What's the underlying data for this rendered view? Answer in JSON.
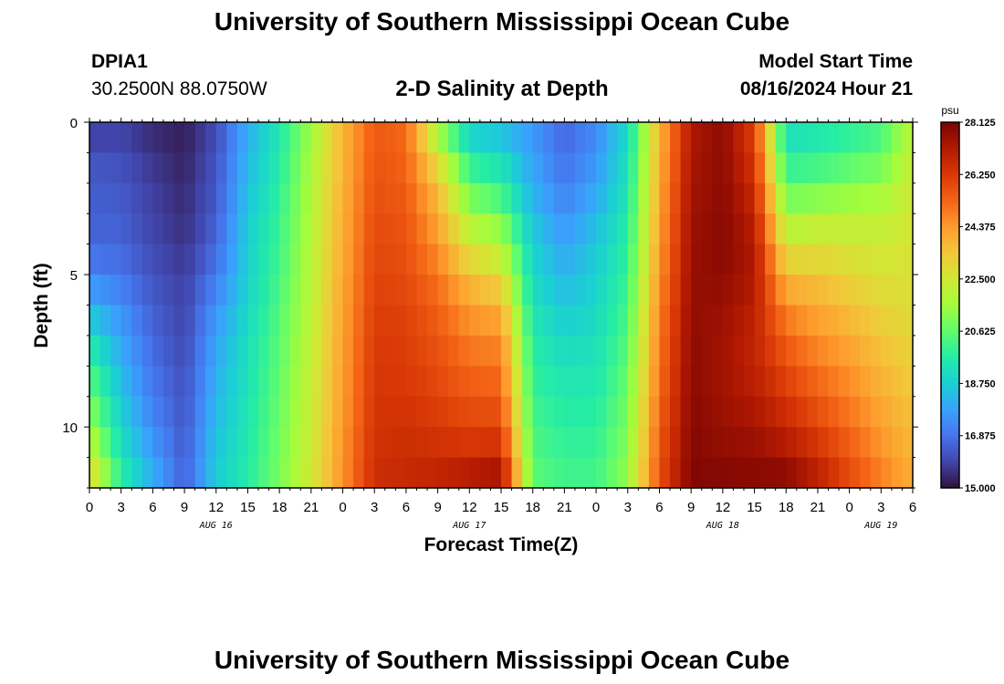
{
  "header": {
    "title": "University of Southern Mississippi Ocean Cube",
    "station_name": "DPIA1",
    "station_coords": "30.2500N  88.0750W",
    "plot_title": "2-D Salinity at Depth",
    "model_start_label": "Model Start Time",
    "model_start_value": "08/16/2024 Hour 21"
  },
  "footer": {
    "title": "University of Southern Mississippi Ocean Cube"
  },
  "chart_data": {
    "type": "heatmap",
    "title": "2-D Salinity at Depth",
    "xlabel": "Forecast Time(Z)",
    "ylabel": "Depth (ft)",
    "x_unit": "hours from Aug 16 00Z",
    "x_range": [
      0,
      78
    ],
    "y_range": [
      0,
      12
    ],
    "x_ticks": [
      0,
      3,
      6,
      9,
      12,
      15,
      18,
      21,
      24,
      27,
      30,
      33,
      36,
      39,
      42,
      45,
      48,
      51,
      54,
      57,
      60,
      63,
      66,
      69,
      72,
      75,
      78
    ],
    "x_tick_labels": [
      "0",
      "3",
      "6",
      "9",
      "12",
      "15",
      "18",
      "21",
      "0",
      "3",
      "6",
      "9",
      "12",
      "15",
      "18",
      "21",
      "0",
      "3",
      "6",
      "9",
      "12",
      "15",
      "18",
      "21",
      "0",
      "3",
      "6"
    ],
    "y_ticks": [
      0,
      5,
      10
    ],
    "y_tick_labels": [
      "0",
      "5",
      "10"
    ],
    "day_labels": [
      {
        "hour": 12,
        "label": "AUG 16"
      },
      {
        "hour": 36,
        "label": "AUG 17"
      },
      {
        "hour": 60,
        "label": "AUG 18"
      },
      {
        "hour": 75,
        "label": "AUG 19"
      }
    ],
    "colorbar": {
      "unit": "psu",
      "min": 15.0,
      "max": 28.125,
      "tick_values": [
        15.0,
        16.875,
        18.75,
        20.625,
        22.5,
        24.375,
        26.25,
        28.125
      ],
      "tick_labels": [
        "15.000",
        "16.875",
        "18.750",
        "20.625",
        "22.500",
        "24.375",
        "26.250",
        "28.125"
      ],
      "colors": [
        "#30123b",
        "#4145ab",
        "#4675ed",
        "#39a2fc",
        "#1bcfd4",
        "#24eca6",
        "#61fc6c",
        "#a4fc3b",
        "#d1e834",
        "#f3c63a",
        "#fe9b2d",
        "#f36315",
        "#d93806",
        "#b11901",
        "#7a0403"
      ]
    },
    "depth_levels_ft": [
      0,
      1,
      2,
      3,
      4,
      5,
      6,
      7,
      8,
      9,
      10,
      11,
      12
    ],
    "salinity_profiles": [
      {
        "hour": 0,
        "values_psu": [
          15.6,
          16.2,
          16.4,
          16.5,
          16.6,
          17.2,
          18.2,
          19.2,
          20.2,
          20.8,
          21.6,
          22.4,
          23.5
        ]
      },
      {
        "hour": 3,
        "values_psu": [
          15.8,
          16.1,
          16.3,
          16.4,
          16.6,
          16.9,
          17.4,
          17.8,
          18.2,
          18.6,
          19.0,
          19.4,
          20.0
        ]
      },
      {
        "hour": 6,
        "values_psu": [
          15.4,
          15.6,
          15.8,
          15.9,
          16.0,
          16.2,
          16.4,
          16.6,
          16.8,
          17.0,
          17.3,
          17.8,
          18.2
        ]
      },
      {
        "hour": 9,
        "values_psu": [
          15.2,
          15.3,
          15.4,
          15.5,
          15.6,
          15.8,
          15.9,
          16.0,
          16.1,
          16.2,
          16.3,
          16.4,
          16.5
        ]
      },
      {
        "hour": 12,
        "values_psu": [
          16.0,
          16.2,
          16.3,
          16.4,
          16.6,
          17.0,
          17.4,
          17.8,
          18.0,
          18.2,
          18.4,
          18.6,
          18.8
        ]
      },
      {
        "hour": 15,
        "values_psu": [
          18.0,
          18.2,
          18.4,
          18.6,
          18.8,
          18.8,
          19.0,
          19.2,
          19.3,
          19.4,
          19.5,
          19.6,
          19.7
        ]
      },
      {
        "hour": 18,
        "values_psu": [
          19.5,
          19.6,
          19.8,
          20.0,
          20.1,
          20.2,
          20.4,
          20.5,
          20.6,
          20.7,
          20.8,
          20.9,
          21.0
        ]
      },
      {
        "hour": 21,
        "values_psu": [
          21.5,
          21.6,
          21.8,
          21.8,
          21.9,
          22.0,
          22.0,
          22.1,
          22.2,
          22.3,
          22.3,
          22.4,
          22.5
        ]
      },
      {
        "hour": 24,
        "values_psu": [
          23.8,
          23.8,
          23.9,
          24.0,
          24.0,
          24.1,
          24.2,
          24.2,
          24.3,
          24.3,
          24.4,
          24.5,
          24.5
        ]
      },
      {
        "hour": 27,
        "values_psu": [
          25.5,
          25.6,
          25.7,
          25.8,
          25.9,
          26.0,
          26.1,
          26.2,
          26.3,
          26.3,
          26.4,
          26.5,
          26.6
        ]
      },
      {
        "hour": 30,
        "values_psu": [
          25.2,
          25.3,
          25.4,
          25.6,
          25.7,
          25.8,
          26.0,
          26.1,
          26.2,
          26.3,
          26.5,
          26.6,
          26.8
        ]
      },
      {
        "hour": 33,
        "values_psu": [
          21.0,
          22.5,
          23.5,
          24.0,
          24.5,
          25.0,
          25.3,
          25.6,
          25.8,
          26.0,
          26.3,
          26.6,
          27.0
        ]
      },
      {
        "hour": 36,
        "values_psu": [
          18.5,
          19.5,
          20.5,
          21.5,
          22.5,
          23.5,
          24.3,
          24.8,
          25.2,
          25.6,
          26.0,
          26.6,
          27.5
        ]
      },
      {
        "hour": 39,
        "values_psu": [
          18.2,
          19.0,
          19.8,
          20.8,
          21.8,
          22.8,
          23.8,
          24.6,
          25.0,
          25.5,
          26.0,
          26.8,
          27.8
        ]
      },
      {
        "hour": 42,
        "values_psu": [
          17.5,
          17.8,
          18.0,
          18.4,
          18.8,
          19.0,
          19.3,
          19.6,
          19.8,
          20.0,
          20.2,
          20.4,
          20.6
        ]
      },
      {
        "hour": 45,
        "values_psu": [
          16.5,
          16.8,
          17.0,
          17.4,
          17.8,
          18.2,
          18.6,
          19.0,
          19.3,
          19.6,
          19.8,
          20.0,
          20.2
        ]
      },
      {
        "hour": 48,
        "values_psu": [
          17.2,
          17.5,
          17.8,
          18.2,
          18.6,
          18.8,
          19.0,
          19.2,
          19.4,
          19.6,
          19.8,
          20.0,
          20.2
        ]
      },
      {
        "hour": 51,
        "values_psu": [
          19.0,
          19.2,
          19.4,
          19.6,
          19.8,
          20.0,
          20.2,
          20.4,
          20.6,
          20.8,
          21.0,
          21.2,
          21.4
        ]
      },
      {
        "hour": 54,
        "values_psu": [
          23.8,
          23.9,
          24.0,
          24.2,
          24.3,
          24.5,
          24.7,
          24.9,
          25.0,
          25.2,
          25.4,
          25.6,
          25.8
        ]
      },
      {
        "hour": 57,
        "values_psu": [
          27.2,
          27.3,
          27.4,
          27.5,
          27.6,
          27.6,
          27.7,
          27.8,
          27.8,
          27.9,
          27.9,
          28.0,
          28.0
        ]
      },
      {
        "hour": 60,
        "values_psu": [
          27.8,
          27.8,
          27.8,
          27.9,
          27.9,
          27.8,
          27.6,
          27.5,
          27.4,
          27.5,
          27.6,
          27.8,
          28.0
        ]
      },
      {
        "hour": 63,
        "values_psu": [
          26.0,
          26.3,
          26.6,
          26.9,
          27.2,
          27.2,
          27.0,
          26.8,
          26.9,
          27.1,
          27.4,
          27.7,
          28.0
        ]
      },
      {
        "hour": 66,
        "values_psu": [
          19.0,
          19.6,
          20.4,
          21.5,
          22.5,
          23.6,
          24.6,
          25.3,
          25.8,
          26.3,
          26.8,
          27.4,
          28.1
        ]
      },
      {
        "hour": 69,
        "values_psu": [
          19.3,
          19.8,
          20.6,
          21.8,
          22.6,
          23.4,
          24.0,
          24.5,
          25.0,
          25.5,
          26.0,
          26.6,
          27.2
        ]
      },
      {
        "hour": 72,
        "values_psu": [
          19.6,
          20.2,
          21.0,
          21.9,
          22.5,
          23.0,
          23.5,
          24.0,
          24.4,
          24.8,
          25.2,
          25.6,
          26.0
        ]
      },
      {
        "hour": 75,
        "values_psu": [
          20.0,
          20.6,
          21.3,
          22.0,
          22.4,
          22.7,
          23.0,
          23.4,
          23.7,
          24.0,
          24.3,
          24.6,
          25.0
        ]
      },
      {
        "hour": 78,
        "values_psu": [
          22.0,
          22.2,
          22.4,
          22.5,
          22.6,
          22.7,
          22.8,
          23.0,
          23.2,
          23.4,
          23.6,
          23.8,
          24.0
        ]
      }
    ]
  }
}
